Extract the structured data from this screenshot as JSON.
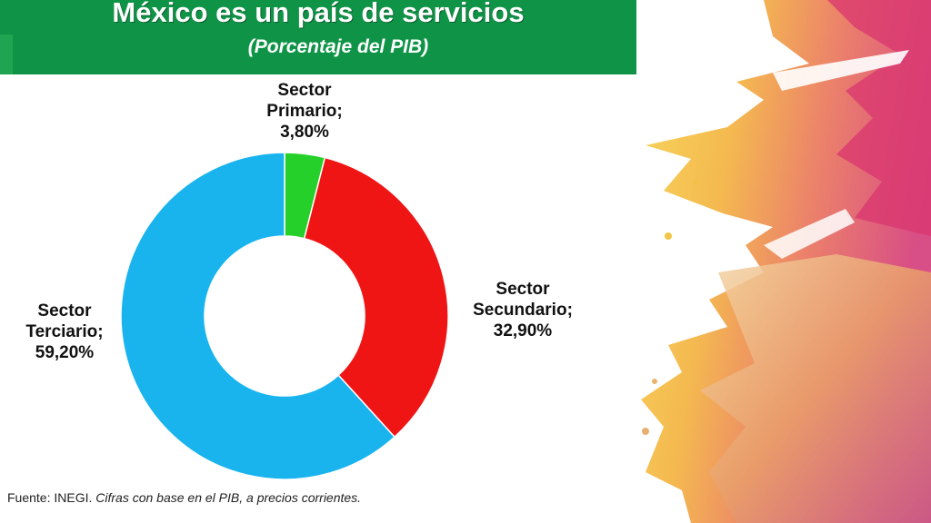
{
  "title": "México es un país de servicios",
  "subtitle": "(Porcentaje del PIB)",
  "source": {
    "prefix": "Fuente: INEGI.",
    "italic": "Cifras con base en el PIB,  a precios corrientes."
  },
  "colors": {
    "primario": "#26d02a",
    "secundario": "#f01515",
    "terciario": "#19b4ee",
    "banner": "#0f9447"
  },
  "chart_data": {
    "type": "pie",
    "variant": "donut",
    "categories": [
      "Sector Primario",
      "Sector Secundario",
      "Sector Terciario"
    ],
    "values": [
      3.8,
      32.9,
      59.2
    ],
    "data_labels": [
      {
        "line1": "Sector",
        "line2": "Primario;",
        "value": "3,80%"
      },
      {
        "line1": "Sector",
        "line2": "Secundario;",
        "value": "32,90%"
      },
      {
        "line1": "Sector",
        "line2": "Terciario;",
        "value": "59,20%"
      }
    ]
  }
}
